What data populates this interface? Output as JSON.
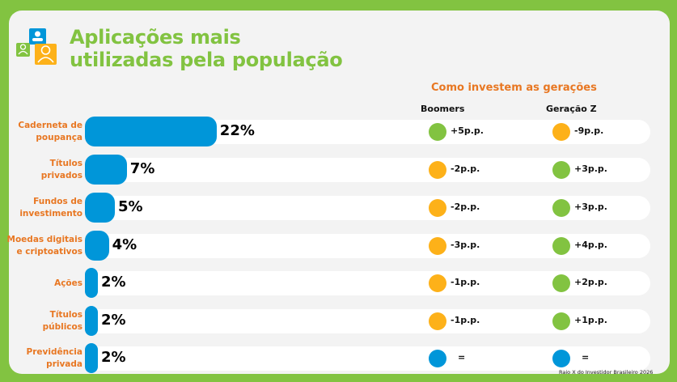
{
  "title_line1": "Aplicações mais",
  "title_line2": "utilizadas pela população",
  "subtitle": "Como investem as gerações",
  "footer": "Raio X do Investidor Brasileiro 2026",
  "colors": {
    "frame": "#82c341",
    "bar": "#0096d9",
    "positive": "#82c341",
    "negative": "#fdb119",
    "neutral": "#0096d9",
    "label": "#e87722"
  },
  "chart_data": {
    "type": "bar",
    "orientation": "horizontal",
    "categories": [
      "Caderneta de poupança",
      "Títulos privados",
      "Fundos de investimento",
      "Moedas digitais e criptoativos",
      "Ações",
      "Títulos públicos",
      "Previdência privada"
    ],
    "category_lines": [
      [
        "Caderneta de",
        "poupança"
      ],
      [
        "Títulos",
        "privados"
      ],
      [
        "Fundos de",
        "investimento"
      ],
      [
        "Moedas digitais",
        "e criptoativos"
      ],
      [
        "Ações"
      ],
      [
        "Títulos",
        "públicos"
      ],
      [
        "Previdência",
        "privada"
      ]
    ],
    "values": [
      22,
      7,
      5,
      4,
      2,
      2,
      2
    ],
    "value_labels": [
      "22%",
      "7%",
      "5%",
      "4%",
      "2%",
      "2%",
      "2%"
    ],
    "columns": [
      "Boomers",
      "Geração Z"
    ],
    "boomers": [
      "+5p.p.",
      "-2p.p.",
      "-2p.p.",
      "-3p.p.",
      "-1p.p.",
      "-1p.p.",
      "="
    ],
    "geracao_z": [
      "-9p.p.",
      "+3p.p.",
      "+3p.p.",
      "+4p.p.",
      "+2p.p.",
      "+1p.p.",
      "="
    ]
  }
}
